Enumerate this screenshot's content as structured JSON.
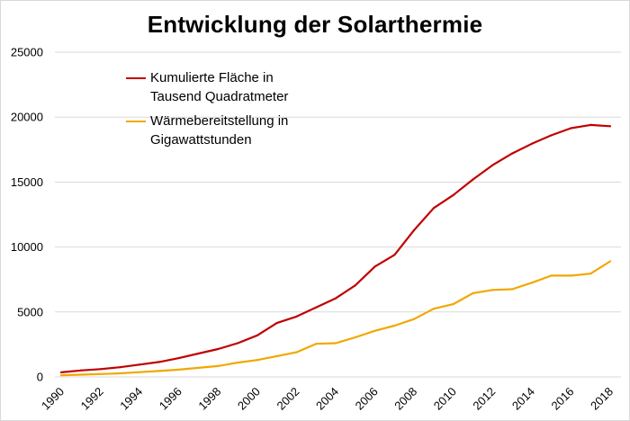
{
  "chart_data": {
    "type": "line",
    "title": "Entwicklung der Solarthermie",
    "x": [
      1990,
      1991,
      1992,
      1993,
      1994,
      1995,
      1996,
      1997,
      1998,
      1999,
      2000,
      2001,
      2002,
      2003,
      2004,
      2005,
      2006,
      2007,
      2008,
      2009,
      2010,
      2011,
      2012,
      2013,
      2014,
      2015,
      2016,
      2017,
      2018
    ],
    "x_tick_labels": [
      "1990",
      "1992",
      "1994",
      "1996",
      "1998",
      "2000",
      "2002",
      "2004",
      "2006",
      "2008",
      "2010",
      "2012",
      "2014",
      "2016",
      "2018"
    ],
    "y_tick_labels": [
      "0",
      "5000",
      "10000",
      "15000",
      "20000",
      "25000"
    ],
    "ylim": [
      0,
      25000
    ],
    "grid": true,
    "legend_position": "top-left",
    "series": [
      {
        "name": "Kumulierte Fläche in\nTausend Quadratmeter",
        "color": "#c00000",
        "values": [
          350,
          500,
          600,
          750,
          950,
          1150,
          1450,
          1800,
          2150,
          2600,
          3200,
          4150,
          4650,
          5350,
          6050,
          7050,
          8500,
          9400,
          11300,
          13000,
          14000,
          15200,
          16300,
          17200,
          17950,
          18600,
          19150,
          19400,
          19300
        ]
      },
      {
        "name": "Wärmebereitstellung in\nGigawattstunden",
        "color": "#f0a800",
        "values": [
          130,
          170,
          220,
          280,
          370,
          460,
          560,
          700,
          840,
          1100,
          1300,
          1600,
          1900,
          2550,
          2600,
          3050,
          3550,
          3950,
          4450,
          5250,
          5600,
          6450,
          6700,
          6750,
          7250,
          7800,
          7800,
          7950,
          8900
        ]
      }
    ]
  }
}
